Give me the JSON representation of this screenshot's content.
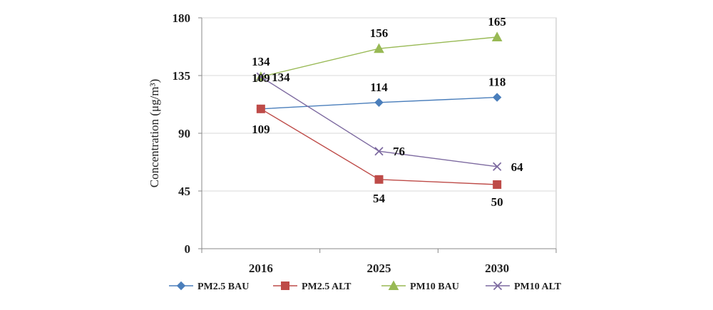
{
  "chart_data": {
    "type": "line",
    "x": [
      "2016",
      "2025",
      "2030"
    ],
    "ylabel": "Concentration (μg/m³)",
    "ylim": [
      0,
      180
    ],
    "yticks": [
      0,
      45,
      90,
      135,
      180
    ],
    "grid": true,
    "legend": "bottom",
    "series": [
      {
        "name": "PM2.5 BAU",
        "values": [
          109,
          114,
          118
        ],
        "color": "#4a7ebb",
        "marker": "diamond"
      },
      {
        "name": "PM2.5 ALT",
        "values": [
          109,
          54,
          50
        ],
        "color": "#be4b48",
        "marker": "square"
      },
      {
        "name": "PM10 BAU",
        "values": [
          134,
          156,
          165
        ],
        "color": "#98b954",
        "marker": "triangle"
      },
      {
        "name": "PM10 ALT",
        "values": [
          134,
          76,
          64
        ],
        "color": "#7d6aa0",
        "marker": "x"
      }
    ]
  }
}
